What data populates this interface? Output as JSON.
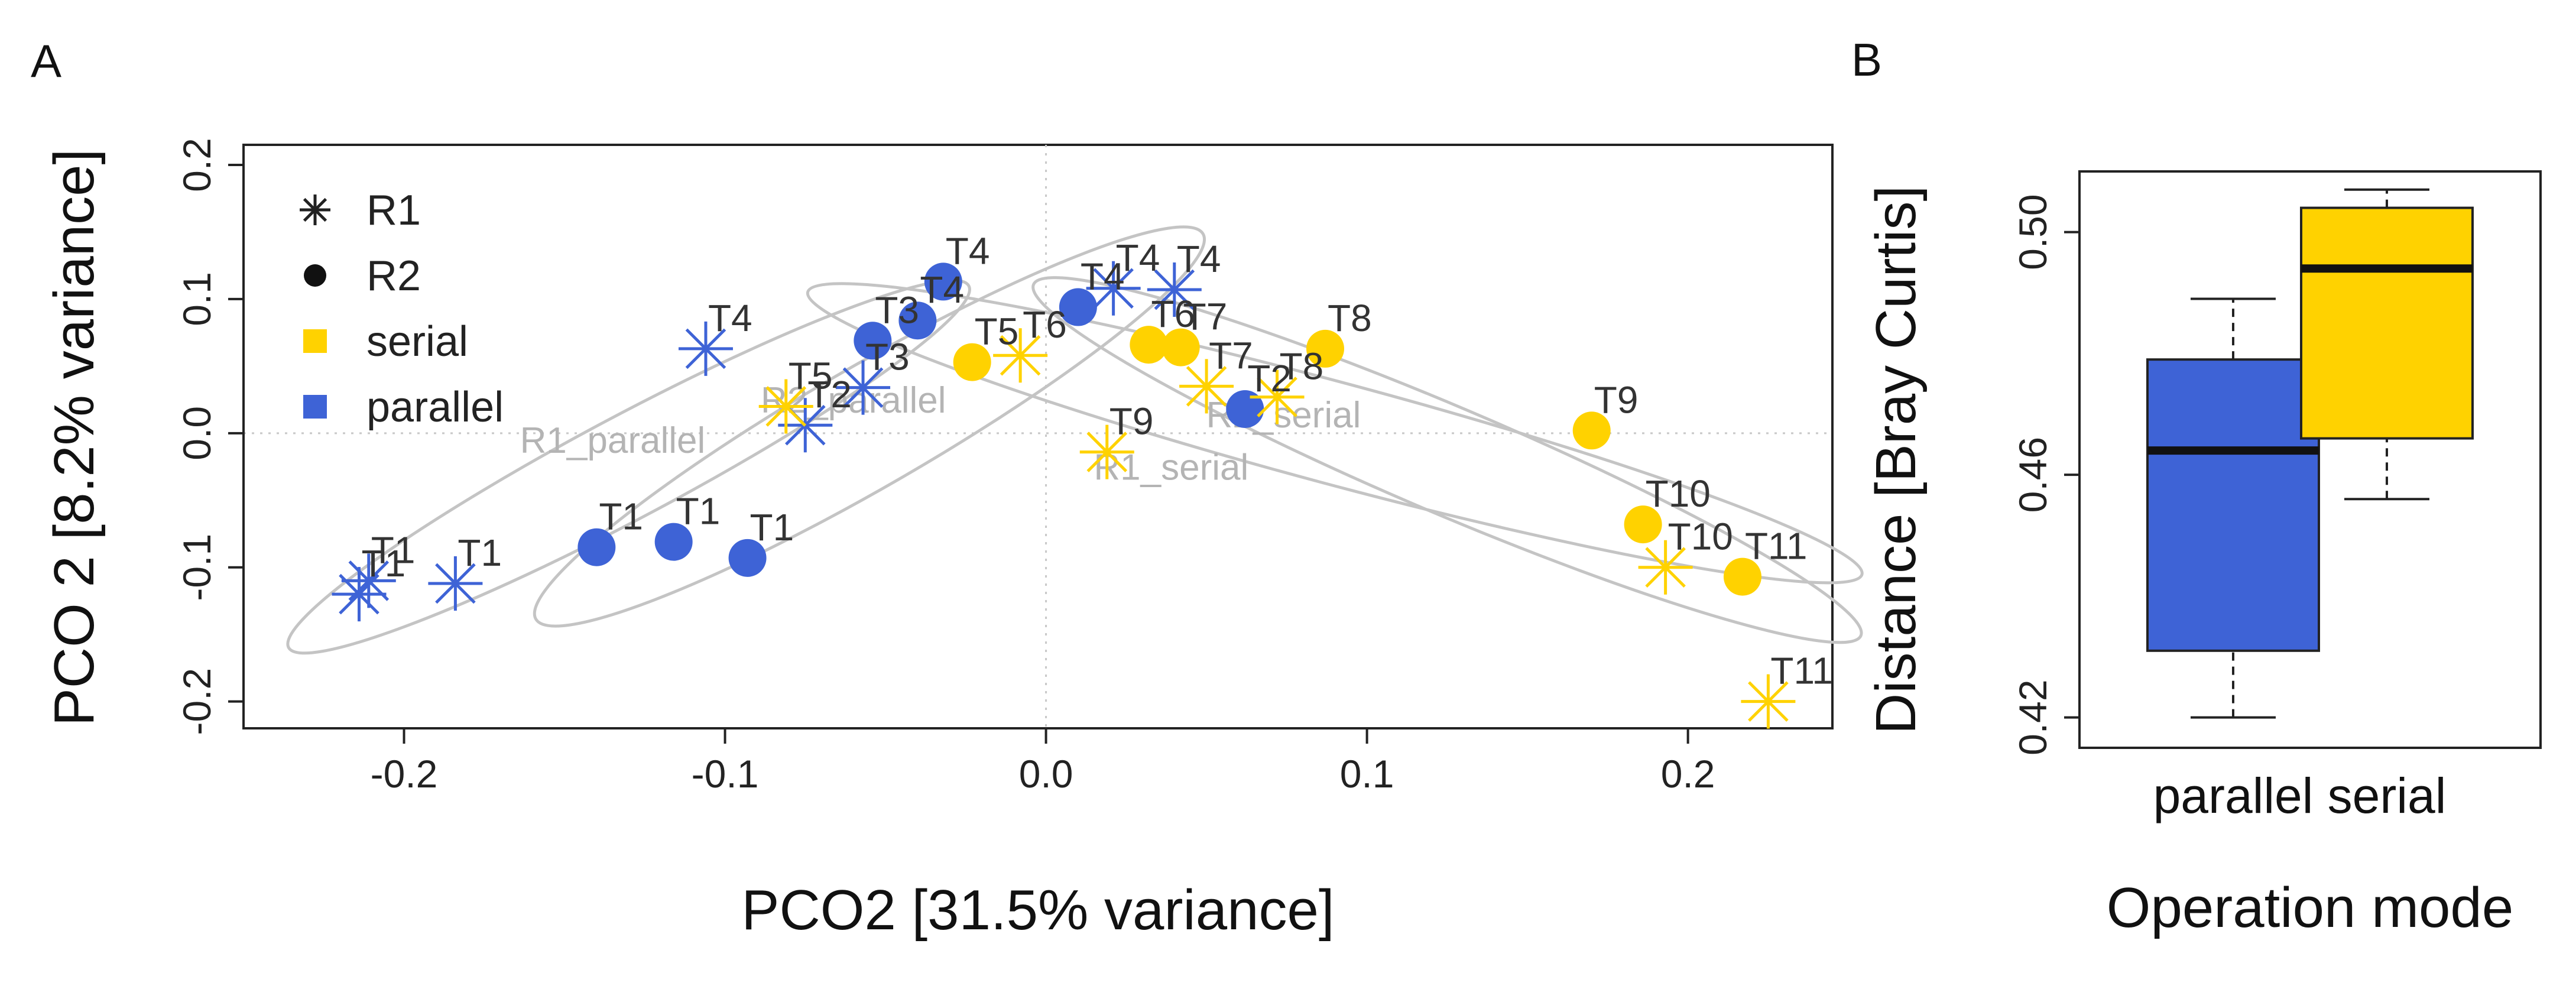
{
  "panel_a_letter": "A",
  "panel_b_letter": "B",
  "chart_data": [
    {
      "type": "scatter",
      "title": "",
      "xlabel": "PCO2 [31.5% variance]",
      "ylabel": "PCO 2 [8.2% variance]",
      "xlim": [
        -0.25,
        0.245
      ],
      "ylim": [
        -0.22,
        0.215
      ],
      "xticks": [
        -0.2,
        -0.1,
        0.0,
        0.1,
        0.2
      ],
      "xtick_labels": [
        "-0.2",
        "-0.1",
        "0.0",
        "0.1",
        "0.2"
      ],
      "yticks": [
        -0.2,
        -0.1,
        0.0,
        0.1,
        0.2
      ],
      "ytick_labels": [
        "-0.2",
        "-0.1",
        "0.0",
        "0.1",
        "0.2"
      ],
      "reference_lines": {
        "x": 0,
        "y": 0,
        "style": "dotted"
      },
      "colors": {
        "serial": "#ffd200",
        "parallel": "#3e63d6",
        "ellipse": "#c4c4c4"
      },
      "legend": {
        "position": "top-left",
        "entries": [
          {
            "label": "R1",
            "marker": "asterisk"
          },
          {
            "label": "R2",
            "marker": "circle"
          },
          {
            "label": "serial",
            "marker": "square",
            "color": "#ffd200"
          },
          {
            "label": "parallel",
            "marker": "square",
            "color": "#3e63d6"
          }
        ]
      },
      "points": [
        {
          "label": "T1",
          "run": "R1",
          "mode": "parallel",
          "x": -0.214,
          "y": -0.12
        },
        {
          "label": "T1",
          "run": "R1",
          "mode": "parallel",
          "x": -0.211,
          "y": -0.11
        },
        {
          "label": "T1",
          "run": "R1",
          "mode": "parallel",
          "x": -0.184,
          "y": -0.112
        },
        {
          "label": "T4",
          "run": "R1",
          "mode": "parallel",
          "x": -0.106,
          "y": 0.063
        },
        {
          "label": "T2",
          "run": "R1",
          "mode": "parallel",
          "x": -0.075,
          "y": 0.006
        },
        {
          "label": "T3",
          "run": "R1",
          "mode": "parallel",
          "x": -0.057,
          "y": 0.034
        },
        {
          "label": "T4",
          "run": "R1",
          "mode": "parallel",
          "x": 0.021,
          "y": 0.108
        },
        {
          "label": "T4",
          "run": "R1",
          "mode": "parallel",
          "x": 0.04,
          "y": 0.107
        },
        {
          "label": "T1",
          "run": "R2",
          "mode": "parallel",
          "x": -0.14,
          "y": -0.085
        },
        {
          "label": "T1",
          "run": "R2",
          "mode": "parallel",
          "x": -0.116,
          "y": -0.081
        },
        {
          "label": "T1",
          "run": "R2",
          "mode": "parallel",
          "x": -0.093,
          "y": -0.093
        },
        {
          "label": "T3",
          "run": "R2",
          "mode": "parallel",
          "x": -0.054,
          "y": 0.069
        },
        {
          "label": "T4",
          "run": "R2",
          "mode": "parallel",
          "x": -0.04,
          "y": 0.084
        },
        {
          "label": "T4",
          "run": "R2",
          "mode": "parallel",
          "x": -0.032,
          "y": 0.113
        },
        {
          "label": "T4",
          "run": "R2",
          "mode": "parallel",
          "x": 0.01,
          "y": 0.094
        },
        {
          "label": "T2",
          "run": "R2",
          "mode": "parallel",
          "x": 0.062,
          "y": 0.018
        },
        {
          "label": "T5",
          "run": "R1",
          "mode": "serial",
          "x": -0.081,
          "y": 0.02
        },
        {
          "label": "T6",
          "run": "R1",
          "mode": "serial",
          "x": -0.008,
          "y": 0.058
        },
        {
          "label": "T9",
          "run": "R1",
          "mode": "serial",
          "x": 0.019,
          "y": -0.014
        },
        {
          "label": "T7",
          "run": "R1",
          "mode": "serial",
          "x": 0.05,
          "y": 0.035
        },
        {
          "label": "T8",
          "run": "R1",
          "mode": "serial",
          "x": 0.072,
          "y": 0.027
        },
        {
          "label": "T10",
          "run": "R1",
          "mode": "serial",
          "x": 0.193,
          "y": -0.1
        },
        {
          "label": "T11",
          "run": "R1",
          "mode": "serial",
          "x": 0.225,
          "y": -0.2
        },
        {
          "label": "T5",
          "run": "R2",
          "mode": "serial",
          "x": -0.023,
          "y": 0.053
        },
        {
          "label": "T6",
          "run": "R2",
          "mode": "serial",
          "x": 0.032,
          "y": 0.066
        },
        {
          "label": "T7",
          "run": "R2",
          "mode": "serial",
          "x": 0.042,
          "y": 0.064
        },
        {
          "label": "T8",
          "run": "R2",
          "mode": "serial",
          "x": 0.087,
          "y": 0.063
        },
        {
          "label": "T9",
          "run": "R2",
          "mode": "serial",
          "x": 0.17,
          "y": 0.002
        },
        {
          "label": "T10",
          "run": "R2",
          "mode": "serial",
          "x": 0.186,
          "y": -0.068
        },
        {
          "label": "T11",
          "run": "R2",
          "mode": "serial",
          "x": 0.217,
          "y": -0.107
        }
      ],
      "ellipses": [
        {
          "name": "R1_parallel",
          "cx": -0.13,
          "cy": -0.025,
          "rx": 0.12,
          "ry": 0.038,
          "angle_deg": 28
        },
        {
          "name": "R2_parallel",
          "cx": -0.055,
          "cy": 0.005,
          "rx": 0.12,
          "ry": 0.045,
          "angle_deg": 30
        },
        {
          "name": "R2_serial",
          "cx": 0.09,
          "cy": 0.0,
          "rx": 0.17,
          "ry": 0.038,
          "angle_deg": -15
        },
        {
          "name": "R1_serial",
          "cx": 0.125,
          "cy": -0.02,
          "rx": 0.14,
          "ry": 0.04,
          "angle_deg": -23
        }
      ],
      "ellipse_labels": [
        {
          "text": "R1_parallel",
          "x": -0.135,
          "y": -0.005
        },
        {
          "text": "R2_parallel",
          "x": -0.06,
          "y": 0.025
        },
        {
          "text": "R2_serial",
          "x": 0.074,
          "y": 0.014
        },
        {
          "text": "R1_serial",
          "x": 0.039,
          "y": -0.025
        }
      ]
    },
    {
      "type": "box",
      "title": "",
      "xlabel": "Operation mode",
      "ylabel": "Distance [Bray Curtis]",
      "ylim": [
        0.415,
        0.51
      ],
      "yticks": [
        0.42,
        0.46,
        0.5
      ],
      "ytick_labels": [
        "0.42",
        "0.46",
        "0.50"
      ],
      "categories": [
        "parallel",
        "serial"
      ],
      "boxes": [
        {
          "name": "parallel",
          "color": "#3e63d6",
          "min": 0.42,
          "q1": 0.431,
          "median": 0.464,
          "q3": 0.479,
          "max": 0.489
        },
        {
          "name": "serial",
          "color": "#ffd200",
          "min": 0.456,
          "q1": 0.466,
          "median": 0.494,
          "q3": 0.504,
          "max": 0.507
        }
      ]
    }
  ]
}
